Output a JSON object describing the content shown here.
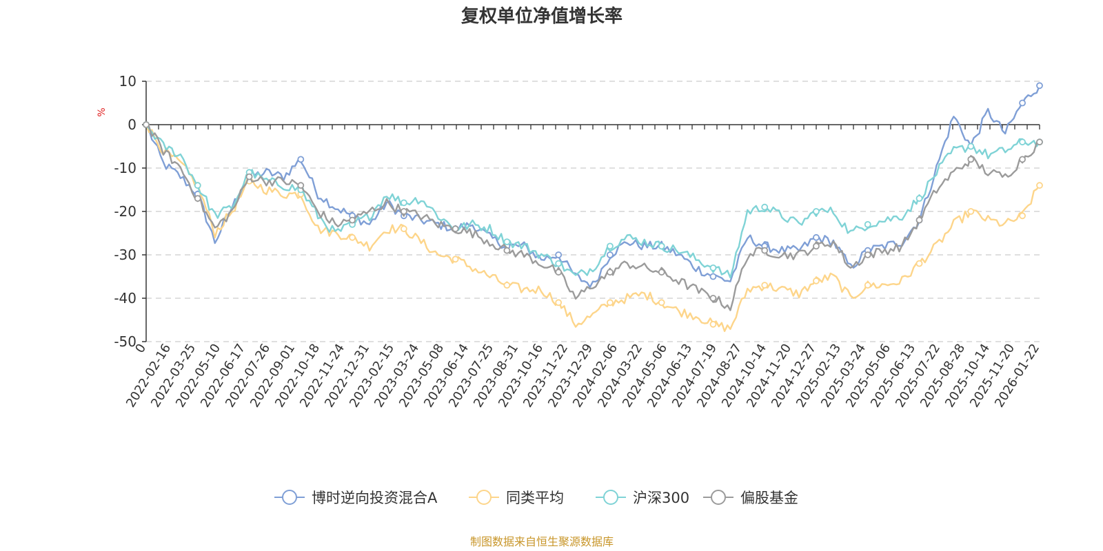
{
  "chart_data": {
    "type": "line",
    "title": "复权单位净值增长率",
    "ylabel": "%",
    "ylim": [
      -50,
      10
    ],
    "yticks": [
      10,
      0,
      -10,
      -20,
      -30,
      -40,
      -50
    ],
    "grid": true,
    "legend_position": "bottom",
    "x_ticks": [
      "0",
      "2022-02-16",
      "2022-03-25",
      "2022-05-10",
      "2022-06-17",
      "2022-07-26",
      "2022-09-01",
      "2022-10-18",
      "2022-11-24",
      "2022-12-31",
      "2023-02-15",
      "2023-03-24",
      "2023-05-08",
      "2023-06-14",
      "2023-07-25",
      "2023-08-31",
      "2023-10-16",
      "2023-11-22",
      "2023-12-29",
      "2024-02-06",
      "2024-03-22",
      "2024-05-06",
      "2024-06-13",
      "2024-07-19",
      "2024-08-27",
      "2024-10-14",
      "2024-11-20",
      "2024-12-27",
      "2025-02-13",
      "2025-03-24",
      "2025-05-06",
      "2025-06-13",
      "2025-07-22",
      "2025-08-28",
      "2025-10-14",
      "2025-11-20",
      "2026-01-22"
    ],
    "series": [
      {
        "name": "博时逆向投资混合A",
        "color": "#7f9fd6",
        "values": [
          0,
          -9,
          -12,
          -16,
          -27,
          -19,
          -12,
          -11,
          -12,
          -8,
          -16,
          -19,
          -21,
          -23,
          -18,
          -21,
          -22,
          -23,
          -24,
          -23,
          -26,
          -28,
          -28,
          -31,
          -30,
          -35,
          -37,
          -30,
          -27,
          -28,
          -28,
          -30,
          -33,
          -35,
          -36,
          -26,
          -28,
          -29,
          -29,
          -26,
          -27,
          -33,
          -29,
          -28,
          -27,
          -22,
          -10,
          2,
          -5,
          3,
          -2,
          5,
          9
        ]
      },
      {
        "name": "同类平均",
        "color": "#fdd58a",
        "values": [
          0,
          -6,
          -9,
          -14,
          -25,
          -20,
          -13,
          -15,
          -16,
          -16,
          -24,
          -25,
          -26,
          -28,
          -24,
          -24,
          -27,
          -30,
          -31,
          -33,
          -35,
          -37,
          -38,
          -38,
          -41,
          -46,
          -44,
          -41,
          -40,
          -39,
          -41,
          -43,
          -44,
          -46,
          -47,
          -38,
          -37,
          -38,
          -39,
          -36,
          -35,
          -40,
          -37,
          -37,
          -36,
          -32,
          -28,
          -23,
          -20,
          -22,
          -23,
          -21,
          -14
        ]
      },
      {
        "name": "沪深300",
        "color": "#7fd3d6",
        "values": [
          0,
          -5,
          -7,
          -14,
          -21,
          -19,
          -11,
          -13,
          -14,
          -15,
          -21,
          -25,
          -23,
          -21,
          -16,
          -18,
          -17,
          -21,
          -24,
          -23,
          -24,
          -27,
          -28,
          -30,
          -32,
          -35,
          -33,
          -28,
          -26,
          -27,
          -28,
          -29,
          -31,
          -33,
          -35,
          -20,
          -19,
          -21,
          -23,
          -20,
          -20,
          -25,
          -23,
          -22,
          -21,
          -17,
          -11,
          -6,
          -5,
          -7,
          -6,
          -4,
          -4
        ]
      },
      {
        "name": "偏股基金",
        "color": "#9b9b9b",
        "values": [
          0,
          -6,
          -10,
          -17,
          -24,
          -20,
          -12,
          -13,
          -13,
          -14,
          -20,
          -23,
          -22,
          -20,
          -18,
          -20,
          -21,
          -23,
          -24,
          -25,
          -27,
          -29,
          -30,
          -32,
          -34,
          -40,
          -37,
          -34,
          -32,
          -33,
          -34,
          -36,
          -38,
          -40,
          -42,
          -30,
          -29,
          -30,
          -30,
          -28,
          -27,
          -33,
          -30,
          -29,
          -28,
          -22,
          -15,
          -11,
          -8,
          -11,
          -12,
          -8,
          -4
        ]
      }
    ]
  },
  "source_text": "制图数据来自恒生聚源数据库"
}
